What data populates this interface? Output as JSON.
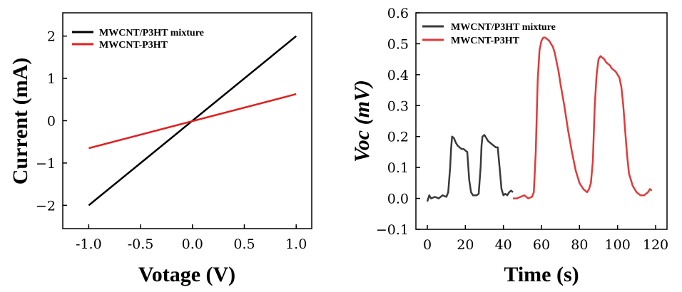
{
  "chart_data": [
    {
      "type": "line",
      "xlabel": "Votage (V)",
      "ylabel": "Current (mA)",
      "xlim": [
        -1.25,
        1.15
      ],
      "ylim": [
        -2.55,
        2.55
      ],
      "xticks": [
        -1.0,
        -0.5,
        0.0,
        0.5,
        1.0
      ],
      "xtick_labels": [
        "-1.0",
        "-0.5",
        "0.0",
        "0.5",
        "1.0"
      ],
      "yticks": [
        -2,
        -1,
        0,
        1,
        2
      ],
      "ytick_labels": [
        "−2",
        "−1",
        "0",
        "1",
        "2"
      ],
      "legend_position": "top-left",
      "series": [
        {
          "name": "MWCNT/P3HT mixture",
          "color": "#000000",
          "x": [
            -1.0,
            1.0
          ],
          "y": [
            -2.0,
            2.0
          ]
        },
        {
          "name": "MWCNT-P3HT",
          "color": "#e02020",
          "x": [
            -1.0,
            1.0
          ],
          "y": [
            -0.65,
            0.63
          ]
        }
      ]
    },
    {
      "type": "line",
      "xlabel": "Time (s)",
      "ylabel": "Voc (mV)",
      "xlim": [
        -6,
        126
      ],
      "ylim": [
        -0.1,
        0.6
      ],
      "xticks": [
        0,
        20,
        40,
        60,
        80,
        100,
        120
      ],
      "xtick_labels": [
        "0",
        "20",
        "40",
        "60",
        "80",
        "100",
        "120"
      ],
      "yticks": [
        -0.1,
        0.0,
        0.1,
        0.2,
        0.3,
        0.4,
        0.5,
        0.6
      ],
      "ytick_labels": [
        "−0.1",
        "0.0",
        "0.1",
        "0.2",
        "0.3",
        "0.4",
        "0.5",
        "0.6"
      ],
      "legend_position": "top-left",
      "series": [
        {
          "name": "MWCNT/P3HT mixture",
          "color": "#3a3a3a",
          "x": [
            0,
            1,
            2,
            4,
            6,
            8,
            10,
            11,
            12,
            12.5,
            13,
            14,
            15,
            16,
            17,
            18,
            19,
            20,
            21,
            22,
            23,
            24,
            26,
            27,
            28,
            28.5,
            29,
            30,
            31,
            32,
            33,
            34,
            35,
            36,
            37,
            38,
            39,
            40,
            41,
            42,
            43,
            44,
            45
          ],
          "y": [
            -0.01,
            0.01,
            0.0,
            0.005,
            0.0,
            0.01,
            0.005,
            0.02,
            0.1,
            0.16,
            0.2,
            0.195,
            0.18,
            0.17,
            0.165,
            0.16,
            0.16,
            0.155,
            0.15,
            0.06,
            0.02,
            0.01,
            0.01,
            0.015,
            0.1,
            0.17,
            0.2,
            0.205,
            0.195,
            0.185,
            0.18,
            0.175,
            0.17,
            0.165,
            0.165,
            0.1,
            0.03,
            0.01,
            0.015,
            0.01,
            0.02,
            0.025,
            0.02
          ]
        },
        {
          "name": "MWCNT-P3HT",
          "color": "#e03a3a",
          "x": [
            45,
            47,
            49,
            51,
            53,
            55,
            56,
            57,
            58,
            59,
            60,
            61,
            62,
            63,
            64,
            65,
            66,
            67,
            68,
            69,
            70,
            72,
            74,
            76,
            78,
            80,
            82,
            84,
            85,
            86,
            87,
            88,
            89,
            90,
            91,
            92,
            93,
            94,
            95,
            96,
            97,
            98,
            99,
            100,
            101,
            102,
            103,
            104,
            105,
            106,
            108,
            110,
            112,
            114,
            116,
            117,
            118
          ],
          "y": [
            0.0,
            0.0,
            0.005,
            0.01,
            0.0,
            0.005,
            0.02,
            0.15,
            0.38,
            0.48,
            0.51,
            0.52,
            0.52,
            0.515,
            0.51,
            0.5,
            0.49,
            0.47,
            0.44,
            0.41,
            0.37,
            0.3,
            0.22,
            0.15,
            0.09,
            0.05,
            0.03,
            0.02,
            0.03,
            0.05,
            0.12,
            0.3,
            0.4,
            0.45,
            0.46,
            0.455,
            0.45,
            0.44,
            0.435,
            0.43,
            0.42,
            0.415,
            0.41,
            0.4,
            0.39,
            0.36,
            0.3,
            0.22,
            0.14,
            0.08,
            0.04,
            0.02,
            0.01,
            0.01,
            0.02,
            0.03,
            0.025
          ]
        }
      ]
    }
  ]
}
